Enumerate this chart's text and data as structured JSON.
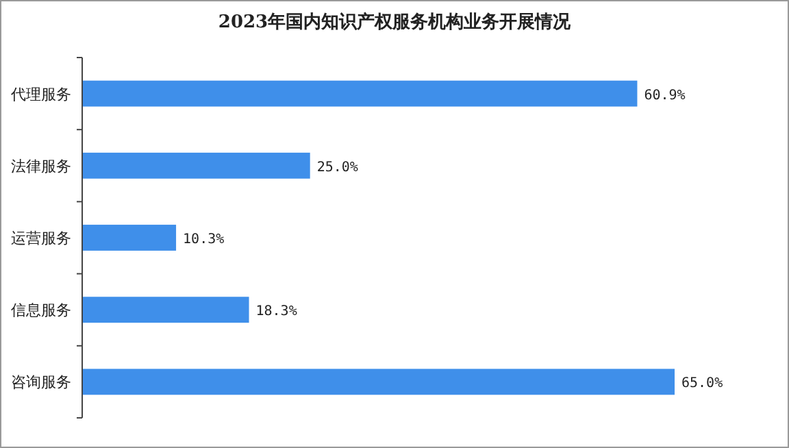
{
  "chart_data": {
    "type": "bar",
    "orientation": "horizontal",
    "title": "2023年国内知识产权服务机构业务开展情况",
    "categories": [
      "代理服务",
      "法律服务",
      "运营服务",
      "信息服务",
      "咨询服务"
    ],
    "values": [
      60.9,
      25.0,
      10.3,
      18.3,
      65.0
    ],
    "value_labels": [
      "60.9%",
      "25.0%",
      "10.3%",
      "18.3%",
      "65.0%"
    ],
    "color": "#3f8fea"
  }
}
